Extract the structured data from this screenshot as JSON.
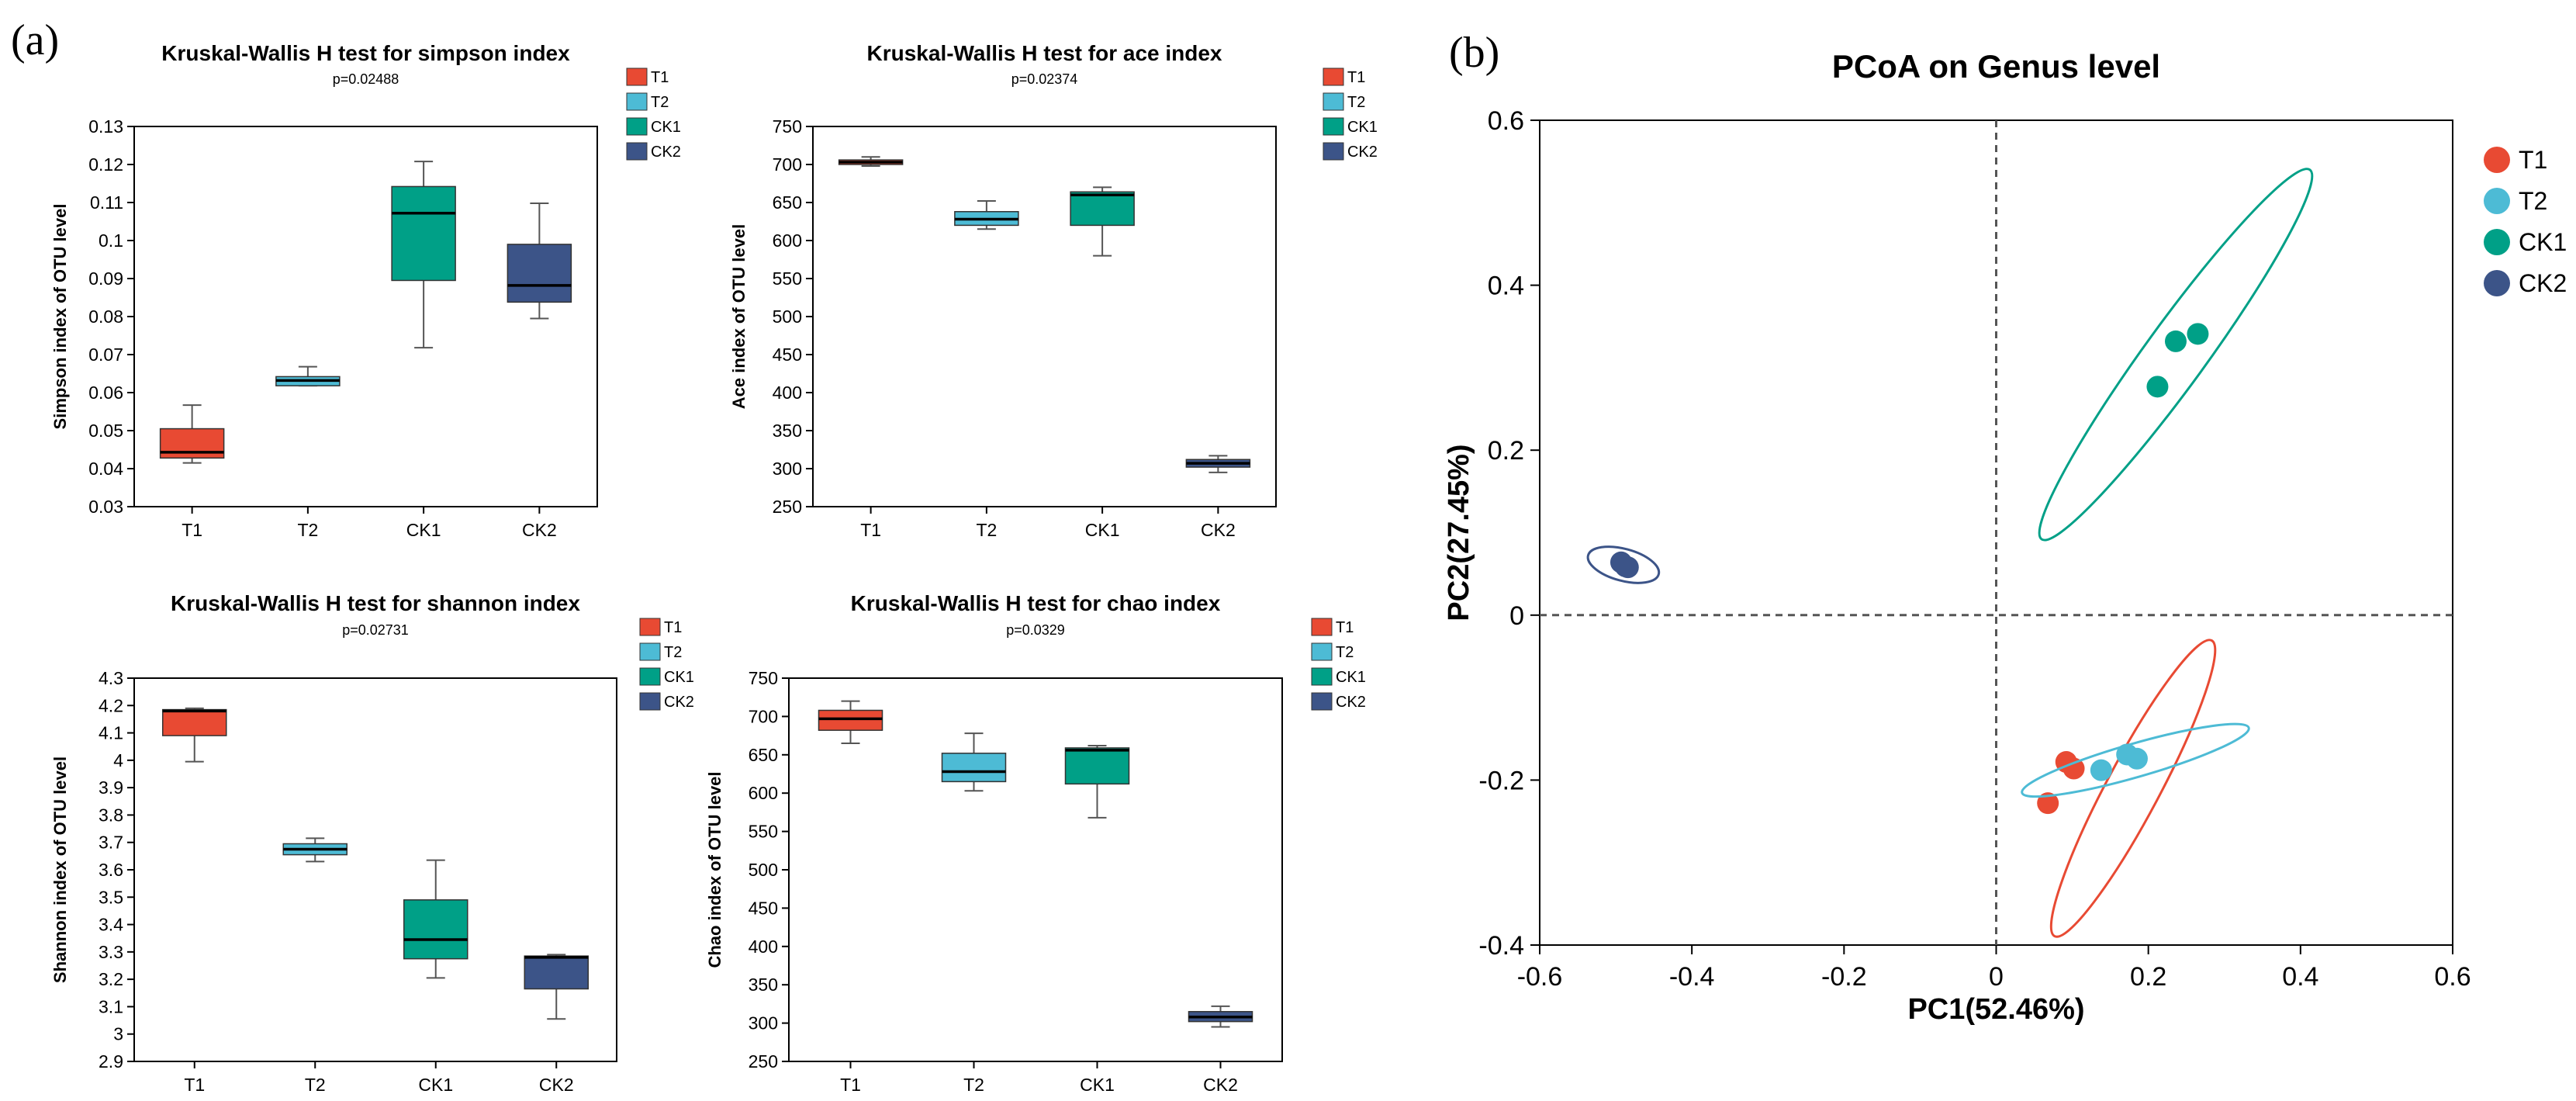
{
  "figure": {
    "panel_a_label": "(a)",
    "panel_b_label": "(b)"
  },
  "colors": {
    "T1": "#e84a33",
    "T2": "#4dbbd5",
    "CK1": "#00a087",
    "CK2": "#3c5488"
  },
  "chart_data": [
    {
      "type": "box",
      "title": "Kruskal-Wallis H test for simpson index",
      "subtitle": "p=0.02488",
      "ylabel": "Simpson index of OTU level",
      "xlabel": "",
      "categories": [
        "T1",
        "T2",
        "CK1",
        "CK2"
      ],
      "legend": [
        "T1",
        "T2",
        "CK1",
        "CK2"
      ],
      "ylim": [
        0.03,
        0.13
      ],
      "yticks": [
        0.03,
        0.04,
        0.05,
        0.06,
        0.07,
        0.08,
        0.09,
        0.1,
        0.11,
        0.12,
        0.13
      ],
      "boxes": [
        {
          "name": "T1",
          "min": 0.0415,
          "q1": 0.0428,
          "median": 0.0443,
          "q3": 0.0505,
          "max": 0.0567
        },
        {
          "name": "T2",
          "min": 0.0618,
          "q1": 0.0618,
          "median": 0.0632,
          "q3": 0.0642,
          "max": 0.0668
        },
        {
          "name": "CK1",
          "min": 0.0718,
          "q1": 0.0895,
          "median": 0.1072,
          "q3": 0.1142,
          "max": 0.1208
        },
        {
          "name": "CK2",
          "min": 0.0795,
          "q1": 0.0838,
          "median": 0.0882,
          "q3": 0.099,
          "max": 0.1098
        }
      ]
    },
    {
      "type": "box",
      "title": "Kruskal-Wallis H test for ace index",
      "subtitle": "p=0.02374",
      "ylabel": "Ace index of OTU level",
      "xlabel": "",
      "categories": [
        "T1",
        "T2",
        "CK1",
        "CK2"
      ],
      "legend": [
        "T1",
        "T2",
        "CK1",
        "CK2"
      ],
      "ylim": [
        250,
        750
      ],
      "yticks": [
        250,
        300,
        350,
        400,
        450,
        500,
        550,
        600,
        650,
        700,
        750
      ],
      "boxes": [
        {
          "name": "T1",
          "min": 698,
          "q1": 700,
          "median": 703,
          "q3": 706,
          "max": 710
        },
        {
          "name": "T2",
          "min": 615,
          "q1": 620,
          "median": 628,
          "q3": 638,
          "max": 652
        },
        {
          "name": "CK1",
          "min": 580,
          "q1": 620,
          "median": 660,
          "q3": 664,
          "max": 670
        },
        {
          "name": "CK2",
          "min": 295,
          "q1": 302,
          "median": 307,
          "q3": 312,
          "max": 317
        }
      ]
    },
    {
      "type": "box",
      "title": "Kruskal-Wallis H test for shannon index",
      "subtitle": "p=0.02731",
      "ylabel": "Shannon index of OTU level",
      "xlabel": "",
      "categories": [
        "T1",
        "T2",
        "CK1",
        "CK2"
      ],
      "legend": [
        "T1",
        "T2",
        "CK1",
        "CK2"
      ],
      "ylim": [
        2.9,
        4.3
      ],
      "yticks": [
        2.9,
        3,
        3.1,
        3.2,
        3.3,
        3.4,
        3.5,
        3.6,
        3.7,
        3.8,
        3.9,
        4,
        4.1,
        4.2,
        4.3
      ],
      "ytick_labels": [
        "2.9",
        "3",
        "3.1",
        "3.2",
        "3.3",
        "3.4",
        "3.5",
        "3.6",
        "3.7",
        "3.8",
        "3.9",
        "4",
        "4.1",
        "4.2",
        "4.3"
      ],
      "boxes": [
        {
          "name": "T1",
          "min": 3.995,
          "q1": 4.09,
          "median": 4.18,
          "q3": 4.185,
          "max": 4.19
        },
        {
          "name": "T2",
          "min": 3.63,
          "q1": 3.655,
          "median": 3.675,
          "q3": 3.695,
          "max": 3.715
        },
        {
          "name": "CK1",
          "min": 3.205,
          "q1": 3.275,
          "median": 3.345,
          "q3": 3.49,
          "max": 3.635
        },
        {
          "name": "CK2",
          "min": 3.055,
          "q1": 3.165,
          "median": 3.28,
          "q3": 3.285,
          "max": 3.29
        }
      ]
    },
    {
      "type": "box",
      "title": "Kruskal-Wallis H test for chao index",
      "subtitle": "p=0.0329",
      "ylabel": "Chao index of OTU level",
      "xlabel": "",
      "categories": [
        "T1",
        "T2",
        "CK1",
        "CK2"
      ],
      "legend": [
        "T1",
        "T2",
        "CK1",
        "CK2"
      ],
      "ylim": [
        250,
        750
      ],
      "yticks": [
        250,
        300,
        350,
        400,
        450,
        500,
        550,
        600,
        650,
        700,
        750
      ],
      "boxes": [
        {
          "name": "T1",
          "min": 665,
          "q1": 682,
          "median": 697,
          "q3": 708,
          "max": 720
        },
        {
          "name": "T2",
          "min": 603,
          "q1": 615,
          "median": 628,
          "q3": 652,
          "max": 678
        },
        {
          "name": "CK1",
          "min": 568,
          "q1": 612,
          "median": 656,
          "q3": 659,
          "max": 662
        },
        {
          "name": "CK2",
          "min": 295,
          "q1": 302,
          "median": 308,
          "q3": 315,
          "max": 322
        }
      ]
    },
    {
      "type": "scatter",
      "title": "PCoA on Genus level",
      "xlabel": "PC1(52.46%)",
      "ylabel": "PC2(27.45%)",
      "xlim": [
        -0.6,
        0.6
      ],
      "ylim": [
        -0.4,
        0.6
      ],
      "xticks": [
        -0.6,
        -0.4,
        -0.2,
        0,
        0.2,
        0.4,
        0.6
      ],
      "xtick_labels": [
        "-0.6",
        "-0.4",
        "-0.2",
        "0",
        "0.2",
        "0.4",
        "0.6"
      ],
      "yticks": [
        -0.4,
        -0.2,
        0,
        0.2,
        0.4,
        0.6
      ],
      "ytick_labels": [
        "-0.4",
        "-0.2",
        "0",
        "0.2",
        "0.4",
        "0.6"
      ],
      "legend": [
        "T1",
        "T2",
        "CK1",
        "CK2"
      ],
      "series": [
        {
          "name": "T1",
          "points": [
            [
              0.068,
              -0.228
            ],
            [
              0.092,
              -0.178
            ],
            [
              0.102,
              -0.186
            ]
          ],
          "ellipse": {
            "cx": 0.18,
            "cy": -0.21,
            "rx": 0.22,
            "ry": 0.035,
            "angle_deg": 62
          }
        },
        {
          "name": "T2",
          "points": [
            [
              0.138,
              -0.188
            ],
            [
              0.172,
              -0.169
            ],
            [
              0.185,
              -0.174
            ]
          ],
          "ellipse": {
            "cx": 0.183,
            "cy": -0.176,
            "rx": 0.155,
            "ry": 0.022,
            "angle_deg": 16
          }
        },
        {
          "name": "CK1",
          "points": [
            [
              0.212,
              0.277
            ],
            [
              0.236,
              0.332
            ],
            [
              0.265,
              0.341
            ]
          ],
          "ellipse": {
            "cx": 0.236,
            "cy": 0.316,
            "rx": 0.3,
            "ry": 0.04,
            "angle_deg": 54
          }
        },
        {
          "name": "CK2",
          "points": [
            [
              -0.493,
              0.064
            ],
            [
              -0.487,
              0.059
            ],
            [
              -0.484,
              0.058
            ]
          ],
          "ellipse": {
            "cx": -0.49,
            "cy": 0.061,
            "rx": 0.048,
            "ry": 0.021,
            "angle_deg": -15
          }
        }
      ]
    }
  ]
}
